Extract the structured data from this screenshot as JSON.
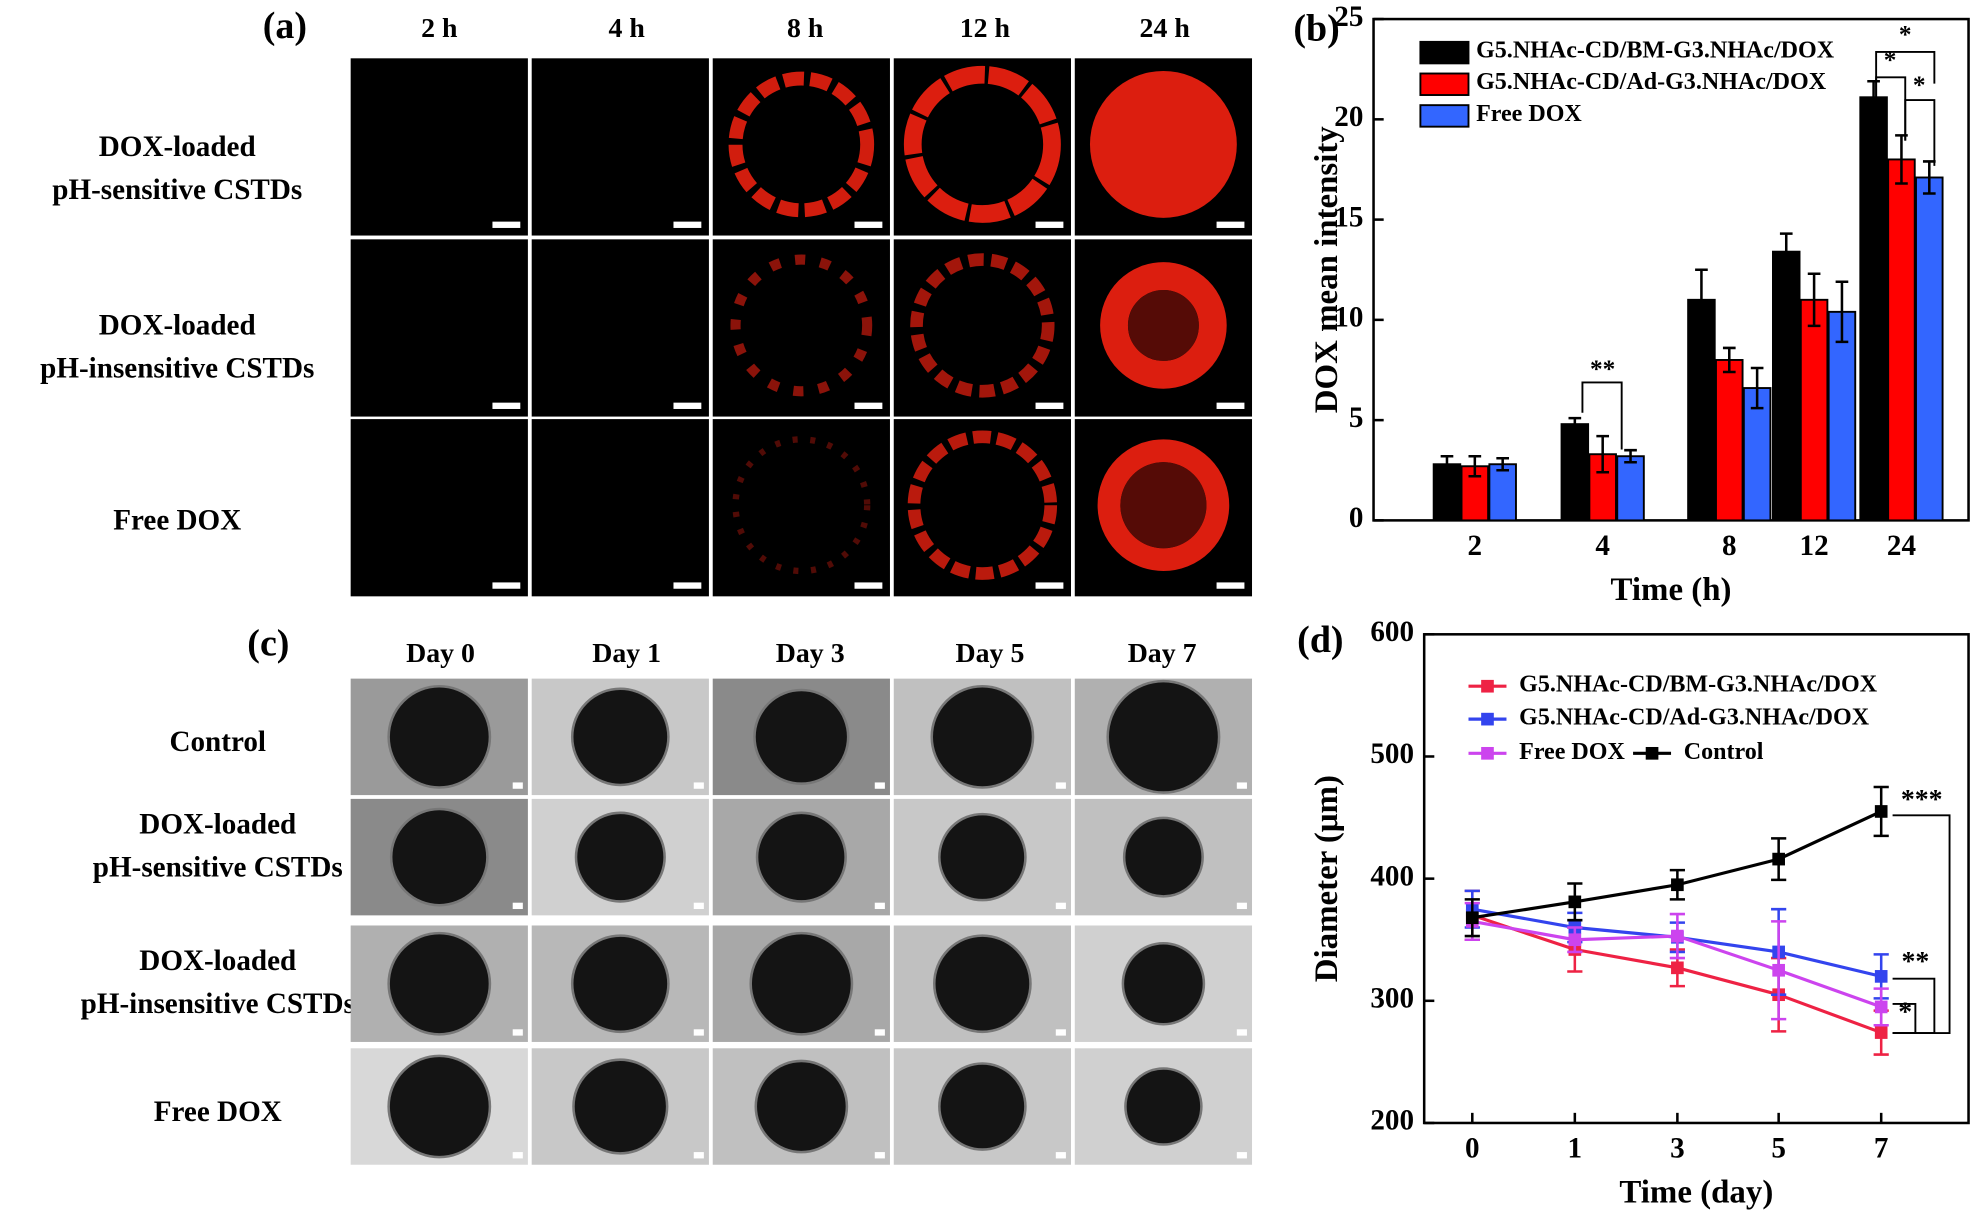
{
  "panel_a": {
    "label": "(a)",
    "columns": [
      "2 h",
      "4 h",
      "8 h",
      "12 h",
      "24 h"
    ],
    "rows": [
      [
        "DOX-loaded",
        "pH-sensitive CSTDs"
      ],
      [
        "DOX-loaded",
        "pH-insensitive CSTDs"
      ],
      [
        "Free DOX"
      ]
    ]
  },
  "panel_c": {
    "label": "(c)",
    "columns": [
      "Day 0",
      "Day 1",
      "Day 3",
      "Day 5",
      "Day 7"
    ],
    "rows": [
      [
        "Control"
      ],
      [
        "DOX-loaded",
        "pH-sensitive CSTDs"
      ],
      [
        "DOX-loaded",
        "pH-insensitive CSTDs"
      ],
      [
        "Free DOX"
      ]
    ]
  },
  "chart_data": [
    {
      "type": "bar",
      "panel_label": "(b)",
      "x_label": "Time (h)",
      "y_label": "DOX mean intensity",
      "categories": [
        "2",
        "4",
        "8",
        "12",
        "24"
      ],
      "series": [
        {
          "name": "G5.NHAc-CD/BM-G3.NHAc/DOX",
          "color": "#000000",
          "values": [
            2.8,
            4.8,
            11.0,
            13.4,
            21.1
          ],
          "errors": [
            0.4,
            0.3,
            1.5,
            0.9,
            0.8
          ]
        },
        {
          "name": "G5.NHAc-CD/Ad-G3.NHAc/DOX",
          "color": "#ff0000",
          "values": [
            2.7,
            3.3,
            8.0,
            11.0,
            18.0
          ],
          "errors": [
            0.5,
            0.9,
            0.6,
            1.3,
            1.2
          ]
        },
        {
          "name": "Free DOX",
          "color": "#3366ff",
          "values": [
            2.8,
            3.2,
            6.6,
            10.4,
            17.1
          ],
          "errors": [
            0.3,
            0.3,
            1.0,
            1.5,
            0.8
          ]
        }
      ],
      "ylim": [
        0,
        25
      ],
      "yticks": [
        0,
        5,
        10,
        15,
        20,
        25
      ],
      "legend": "upper left",
      "annotations": [
        "**",
        "*",
        "*",
        "*"
      ]
    },
    {
      "type": "line",
      "panel_label": "(d)",
      "x_label": "Time (day)",
      "y_label": "Diameter (μm)",
      "categories": [
        "0",
        "1",
        "3",
        "5",
        "7"
      ],
      "series": [
        {
          "name": "G5.NHAc-CD/BM-G3.NHAc/DOX",
          "color": "#ee2244",
          "values": [
            370,
            342,
            327,
            305,
            274
          ],
          "errors": [
            20,
            18,
            15,
            30,
            18
          ]
        },
        {
          "name": "G5.NHAc-CD/Ad-G3.NHAc/DOX",
          "color": "#3344ee",
          "values": [
            375,
            360,
            352,
            340,
            320
          ],
          "errors": [
            15,
            12,
            12,
            35,
            18
          ]
        },
        {
          "name": "Free DOX",
          "color": "#cc44ee",
          "values": [
            365,
            350,
            353,
            325,
            295
          ],
          "errors": [
            15,
            10,
            18,
            40,
            15
          ]
        },
        {
          "name": "Control",
          "color": "#000000",
          "values": [
            368,
            381,
            395,
            416,
            455
          ],
          "errors": [
            15,
            15,
            12,
            17,
            20
          ]
        }
      ],
      "ylim": [
        200,
        600
      ],
      "yticks": [
        200,
        300,
        400,
        500,
        600
      ],
      "legend": "upper left",
      "annotations": [
        "***",
        "**",
        "*"
      ]
    }
  ]
}
